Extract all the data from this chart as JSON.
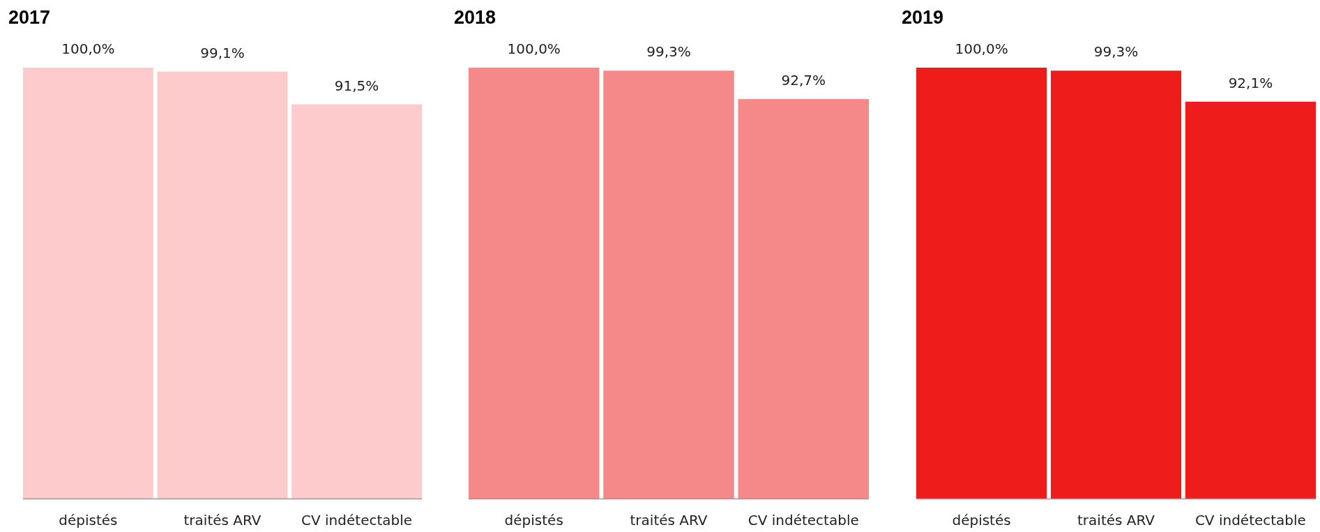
{
  "chart_data": [
    {
      "type": "bar",
      "title": "2017",
      "categories": [
        "dépistés",
        "traités ARV",
        "CV indétectable"
      ],
      "values": [
        100,
        99.1,
        91.5
      ],
      "value_labels": [
        "100,0%",
        "99,1%",
        "91,5%"
      ],
      "color": "#fdcbcb",
      "ylim": [
        0,
        100
      ],
      "tick_labels": "x"
    },
    {
      "type": "bar",
      "title": "2018",
      "categories": [
        "dépistés",
        "traités ARV",
        "CV indétectable"
      ],
      "values": [
        100,
        99.3,
        92.7
      ],
      "value_labels": [
        "100,0%",
        "99,3%",
        "92,7%"
      ],
      "color": "#f58888",
      "ylim": [
        0,
        100
      ],
      "tick_labels": "x"
    },
    {
      "type": "bar",
      "title": "2019",
      "categories": [
        "dépistés",
        "traités ARV",
        "CV indétectable"
      ],
      "values": [
        100,
        99.3,
        92.1
      ],
      "value_labels": [
        "100,0%",
        "99,3%",
        "92,1%"
      ],
      "color": "#ef1c1c",
      "ylim": [
        0,
        100
      ],
      "tick_labels": "x"
    }
  ]
}
